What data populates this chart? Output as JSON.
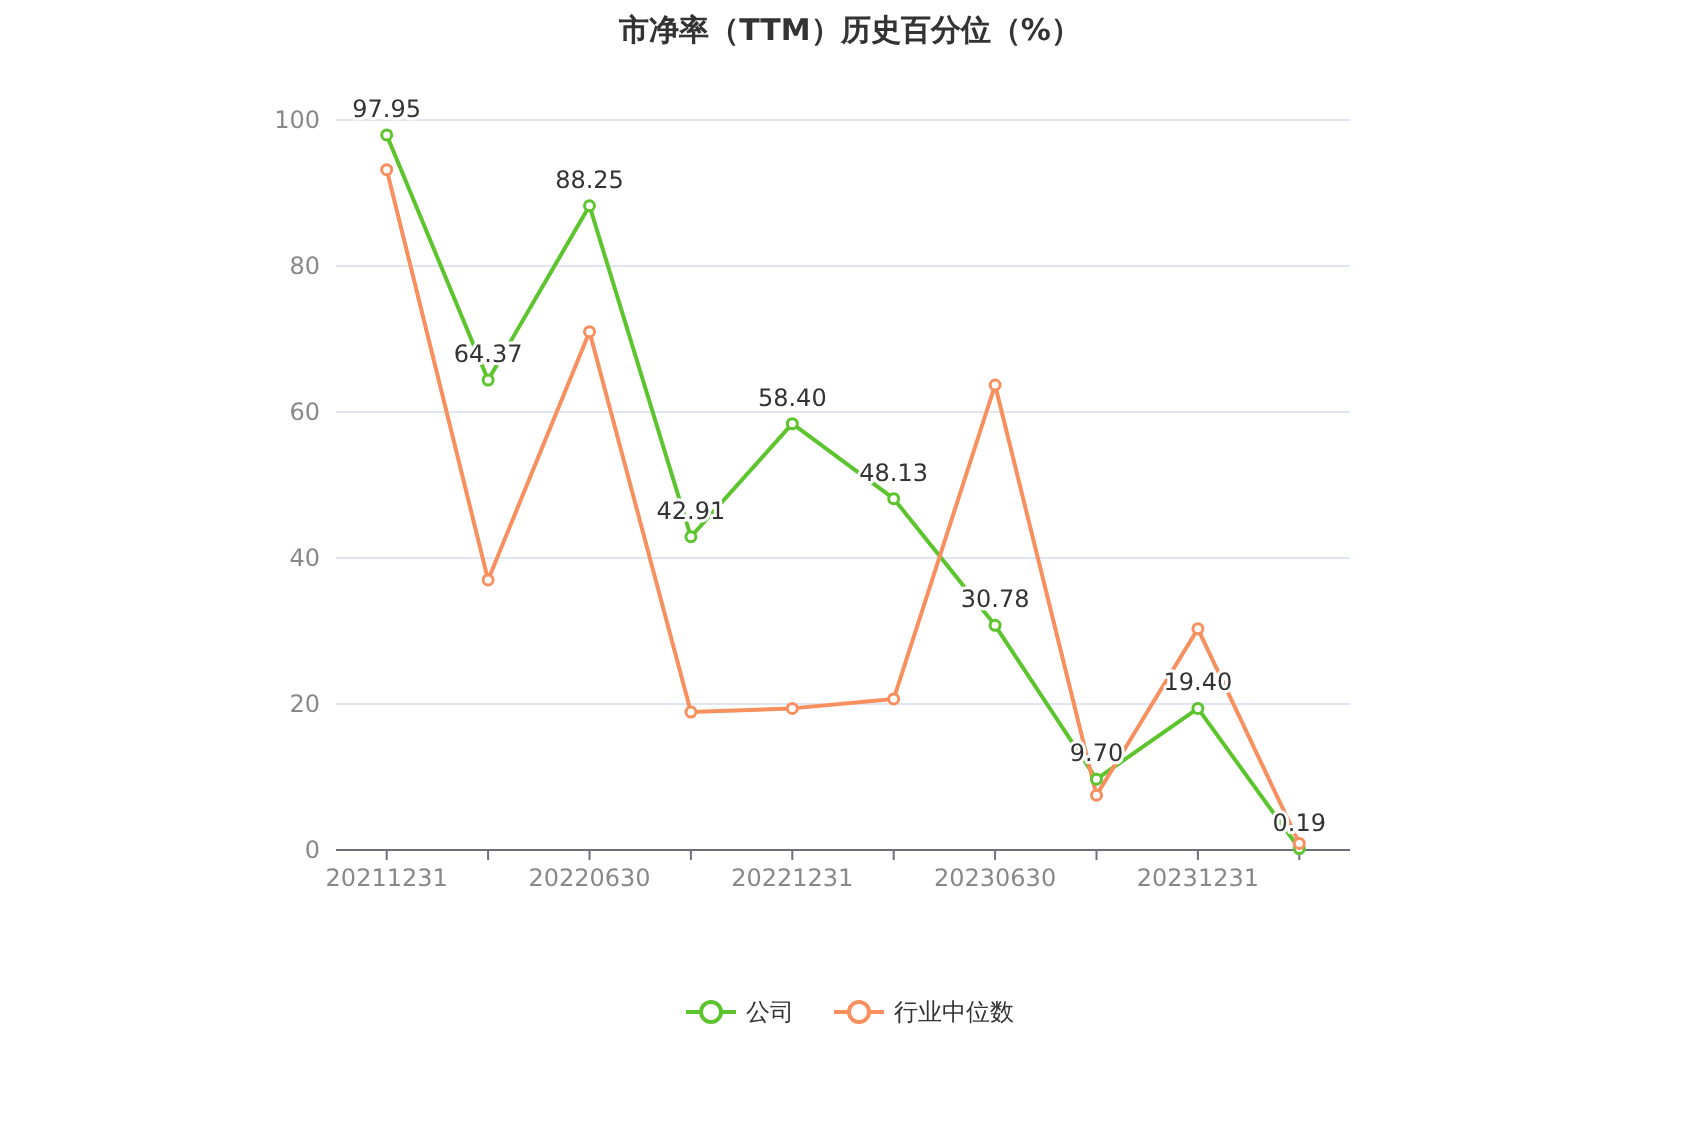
{
  "chart_data": {
    "type": "line",
    "title": "市净率（TTM）历史百分位（%）",
    "categories": [
      "20211231",
      null,
      "20220630",
      null,
      "20221231",
      null,
      "20230630",
      null,
      "20231231",
      null
    ],
    "series": [
      {
        "name": "公司",
        "color": "#5cc42c",
        "values": [
          97.95,
          64.37,
          88.25,
          42.91,
          58.4,
          48.13,
          30.78,
          9.7,
          19.4,
          0.19
        ],
        "value_labels": [
          "97.95",
          "64.37",
          "88.25",
          "42.91",
          "58.40",
          "48.13",
          "30.78",
          "9.70",
          "19.40",
          "0.19"
        ]
      },
      {
        "name": "行业中位数",
        "color": "#f78f5e",
        "values": [
          93.2,
          37.0,
          71.0,
          18.9,
          19.4,
          20.7,
          63.7,
          7.5,
          30.3,
          0.9
        ]
      }
    ],
    "ylim": [
      0,
      100
    ],
    "yticks": [
      0,
      20,
      40,
      60,
      80,
      100
    ],
    "grid": "y",
    "legend": "bottom",
    "marker": "circle"
  }
}
